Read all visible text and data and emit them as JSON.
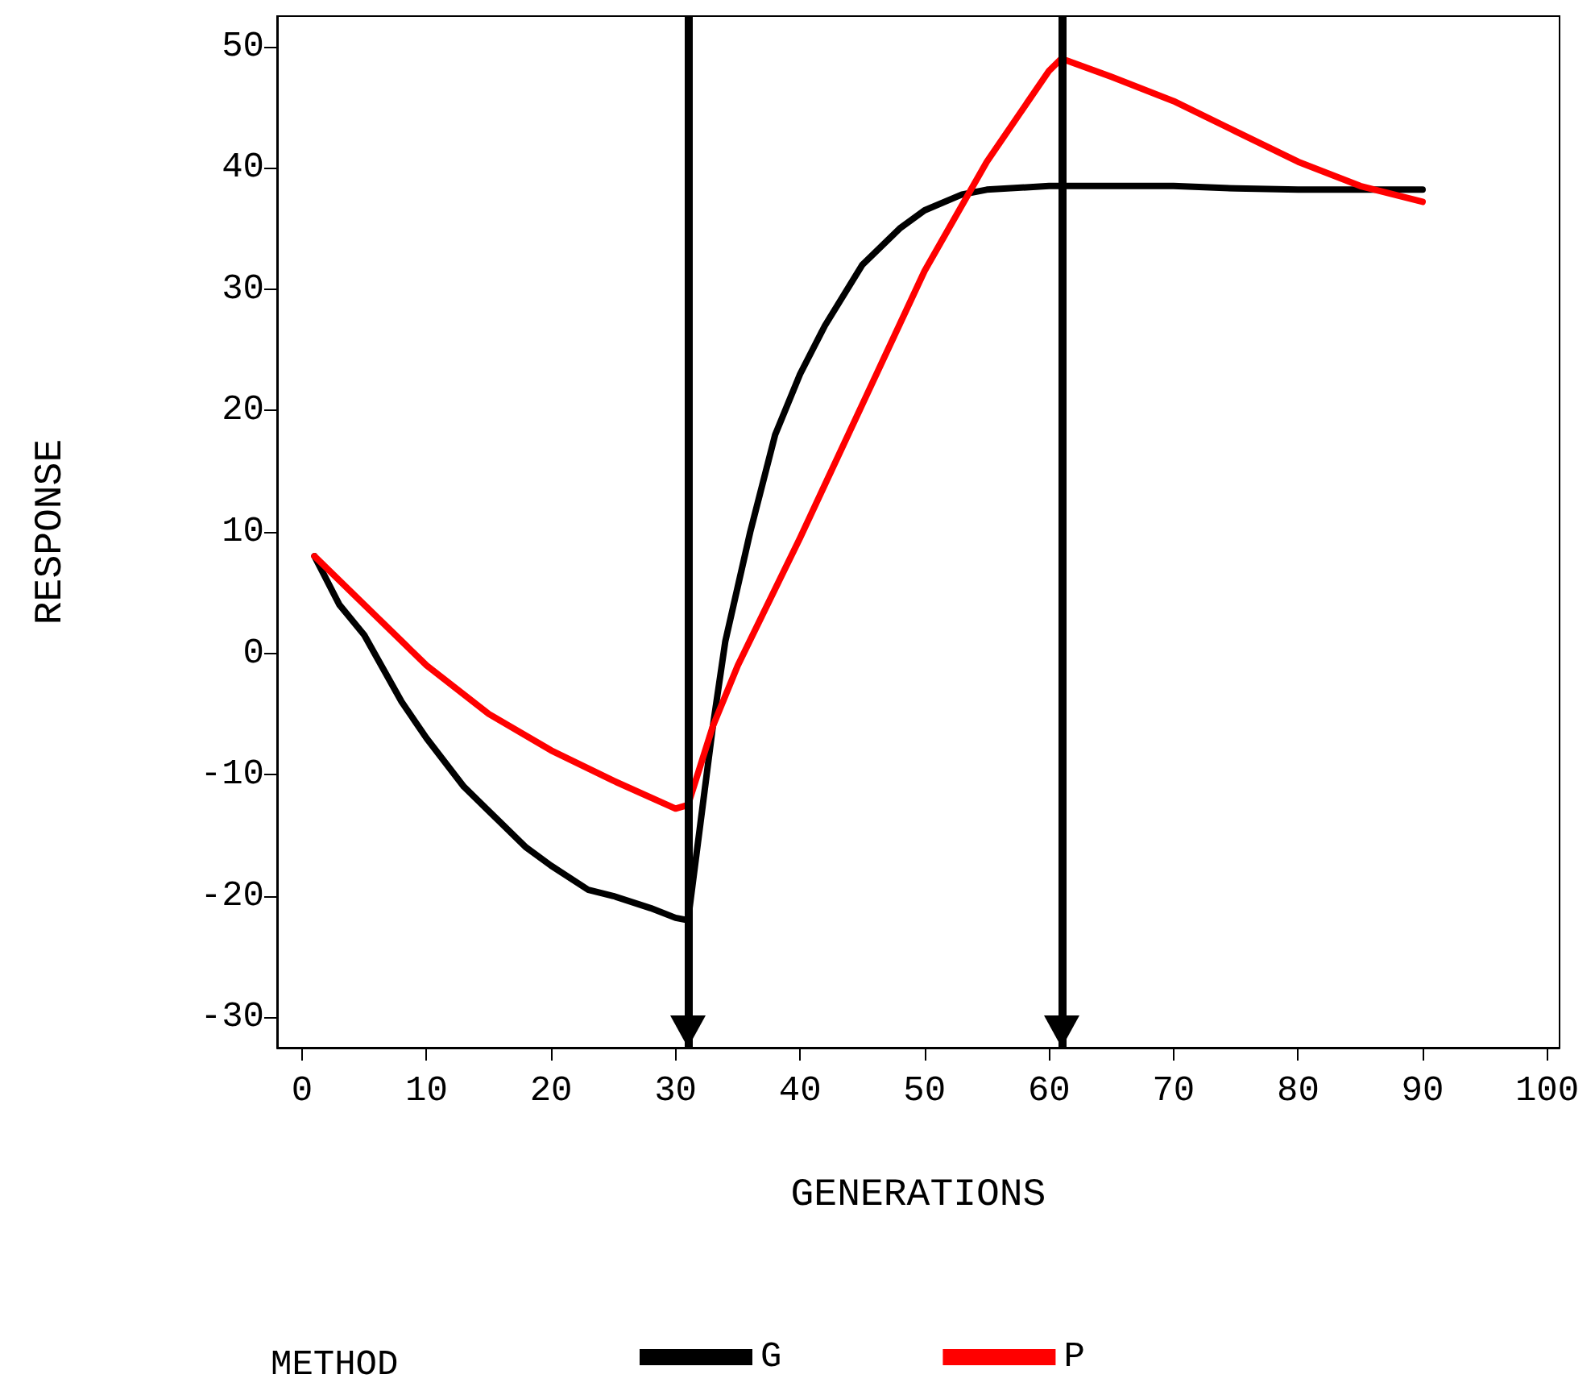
{
  "chart_data": {
    "type": "line",
    "xlabel": "GENERATIONS",
    "ylabel": "RESPONSE",
    "legend_title": "METHOD",
    "legend": "bottom",
    "marker": "none",
    "line_style": "solid",
    "grid": false,
    "xlim": [
      -2,
      101
    ],
    "xticks": [
      0,
      10,
      20,
      30,
      40,
      50,
      60,
      70,
      80,
      90,
      100
    ],
    "ylim": [
      -32.5,
      52.5
    ],
    "yticks": [
      -30,
      -20,
      -10,
      0,
      10,
      20,
      30,
      40,
      50
    ],
    "series": [
      {
        "name": "G",
        "color": "#000000",
        "x": [
          1,
          3,
          5,
          8,
          10,
          13,
          15,
          18,
          20,
          23,
          25,
          28,
          30,
          31,
          32,
          33,
          34,
          36,
          38,
          40,
          42,
          45,
          48,
          50,
          53,
          55,
          60,
          65,
          70,
          75,
          80,
          85,
          90
        ],
        "values": [
          8,
          4,
          1.5,
          -4,
          -7,
          -11,
          -13,
          -16,
          -17.5,
          -19.5,
          -20,
          -21,
          -21.8,
          -22,
          -14,
          -6,
          1,
          10,
          18,
          23,
          27,
          32,
          35,
          36.5,
          37.8,
          38.2,
          38.5,
          38.5,
          38.5,
          38.3,
          38.2,
          38.2,
          38.2
        ]
      },
      {
        "name": "P",
        "color": "#ff0000",
        "x": [
          1,
          5,
          10,
          15,
          20,
          25,
          30,
          31,
          33,
          35,
          40,
          45,
          50,
          55,
          60,
          61,
          65,
          70,
          75,
          80,
          85,
          90
        ],
        "values": [
          8,
          4,
          -1,
          -5,
          -8,
          -10.5,
          -12.8,
          -12.5,
          -6,
          -1,
          9.5,
          20.5,
          31.5,
          40.5,
          48,
          49,
          47.5,
          45.5,
          43,
          40.5,
          38.5,
          37.2
        ]
      }
    ],
    "ref_lines": [
      {
        "axis": "x",
        "value": 31,
        "color": "#000000"
      },
      {
        "axis": "x",
        "value": 61,
        "color": "#000000"
      }
    ]
  }
}
